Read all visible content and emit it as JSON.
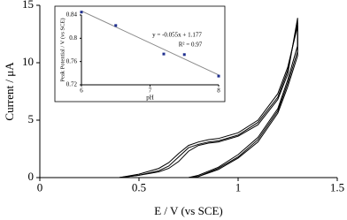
{
  "chart_data": [
    {
      "type": "line",
      "xlabel": "E / V (vs SCE)",
      "ylabel": "Current / μA",
      "x": [
        0.4,
        0.5,
        0.6,
        0.65,
        0.7,
        0.75,
        0.8,
        0.85,
        0.9,
        1.0,
        1.1,
        1.2,
        1.25,
        1.3,
        1.3,
        1.25,
        1.2,
        1.1,
        1.0,
        0.9,
        0.8,
        0.75
      ],
      "series": [
        {
          "color": "#000000",
          "values": [
            0,
            0.2,
            0.5,
            0.8,
            1.4,
            2.3,
            2.8,
            3.0,
            3.1,
            3.6,
            4.6,
            6.8,
            9.0,
            13.9,
            11.5,
            8.5,
            6.0,
            3.5,
            2.0,
            0.9,
            0.2,
            0
          ]
        },
        {
          "color": "#000000",
          "values": [
            0,
            0.2,
            0.6,
            1.0,
            1.8,
            2.6,
            2.9,
            3.1,
            3.2,
            3.7,
            4.8,
            7.0,
            9.3,
            13.5,
            11.0,
            8.2,
            5.8,
            3.3,
            1.8,
            0.8,
            0.1,
            0
          ]
        },
        {
          "color": "#000000",
          "values": [
            0,
            0.3,
            0.8,
            1.3,
            2.1,
            2.8,
            3.1,
            3.3,
            3.4,
            3.9,
            5.0,
            7.3,
            9.6,
            13.2,
            10.6,
            7.9,
            5.6,
            3.1,
            1.7,
            0.7,
            0.1,
            0
          ]
        }
      ],
      "xlim": [
        0,
        1.5
      ],
      "xticks": [
        0,
        0.5,
        1,
        1.5
      ],
      "ylim": [
        0,
        15
      ],
      "yticks": [
        0,
        5,
        10,
        15
      ]
    },
    {
      "type": "scatter",
      "xlabel": "pH",
      "ylabel": "Peak Potential / V (vs SCE)",
      "x": [
        6,
        6.5,
        7.2,
        7.5,
        8
      ],
      "values": [
        0.845,
        0.822,
        0.773,
        0.772,
        0.735
      ],
      "color": "#1f2f8f",
      "trendline": {
        "x": [
          6,
          8
        ],
        "values": [
          0.847,
          0.737
        ],
        "color": "#888888"
      },
      "annotations": [
        "y = -0.055x + 1.177",
        "R² = 0.97"
      ],
      "xlim": [
        6,
        8
      ],
      "xticks": [
        6,
        7,
        8
      ],
      "ylim": [
        0.72,
        0.84
      ],
      "yticks": [
        0.72,
        0.76,
        0.8,
        0.84
      ]
    }
  ]
}
